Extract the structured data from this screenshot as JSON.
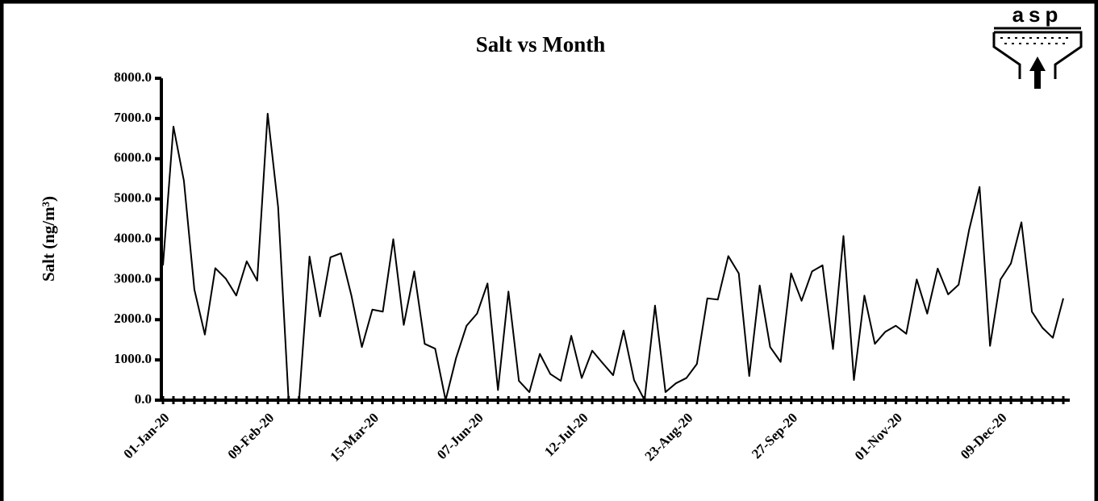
{
  "chart_data": {
    "type": "line",
    "title": "Salt vs Month",
    "y_label": "Salt (ng/m³)",
    "logo": "asp",
    "categories": [
      "01-Jan-20",
      null,
      null,
      null,
      null,
      null,
      null,
      null,
      null,
      null,
      "09-Feb-20",
      null,
      null,
      null,
      null,
      null,
      null,
      null,
      null,
      null,
      "15-Mar-20",
      null,
      null,
      null,
      null,
      null,
      null,
      null,
      null,
      null,
      "07-Jun-20",
      null,
      null,
      null,
      null,
      null,
      null,
      null,
      null,
      null,
      "12-Jul-20",
      null,
      null,
      null,
      null,
      null,
      null,
      null,
      null,
      null,
      "23-Aug-20",
      null,
      null,
      null,
      null,
      null,
      null,
      null,
      null,
      null,
      "27-Sep-20",
      null,
      null,
      null,
      null,
      null,
      null,
      null,
      null,
      null,
      "01-Nov-20",
      null,
      null,
      null,
      null,
      null,
      null,
      null,
      null,
      null,
      "09-Dec-20",
      null,
      null,
      null,
      null,
      null,
      null
    ],
    "series": [
      {
        "name": "Salt",
        "color": "#000000",
        "values": [
          3350,
          6800,
          5450,
          2750,
          1630,
          3280,
          3020,
          2600,
          3450,
          2970,
          7120,
          4800,
          0,
          0,
          3570,
          2080,
          3550,
          3650,
          2600,
          1320,
          2250,
          2200,
          4000,
          1870,
          3200,
          1400,
          1280,
          0,
          1050,
          1850,
          2150,
          2900,
          250,
          2700,
          480,
          200,
          1150,
          650,
          480,
          1600,
          550,
          1230,
          920,
          620,
          1730,
          500,
          0,
          2350,
          200,
          420,
          550,
          900,
          2530,
          2500,
          3580,
          3150,
          600,
          2850,
          1320,
          950,
          3150,
          2470,
          3200,
          3350,
          1270,
          4080,
          500,
          2600,
          1400,
          1700,
          1850,
          1650,
          3000,
          2150,
          3270,
          2630,
          2870,
          4230,
          5300,
          1350,
          3000,
          3400,
          4420,
          2200,
          1800,
          1550,
          2530
        ]
      }
    ],
    "ylim": [
      0,
      8000
    ],
    "yticks": [
      {
        "value": 0,
        "label": "0.0"
      },
      {
        "value": 1000,
        "label": "1000.0"
      },
      {
        "value": 2000,
        "label": "2000.0"
      },
      {
        "value": 3000,
        "label": "3000.0"
      },
      {
        "value": 4000,
        "label": "4000.0"
      },
      {
        "value": 5000,
        "label": "5000.0"
      },
      {
        "value": 6000,
        "label": "6000.0"
      },
      {
        "value": 7000,
        "label": "7000.0"
      },
      {
        "value": 8000,
        "label": "8000.0"
      }
    ],
    "grid": false
  }
}
